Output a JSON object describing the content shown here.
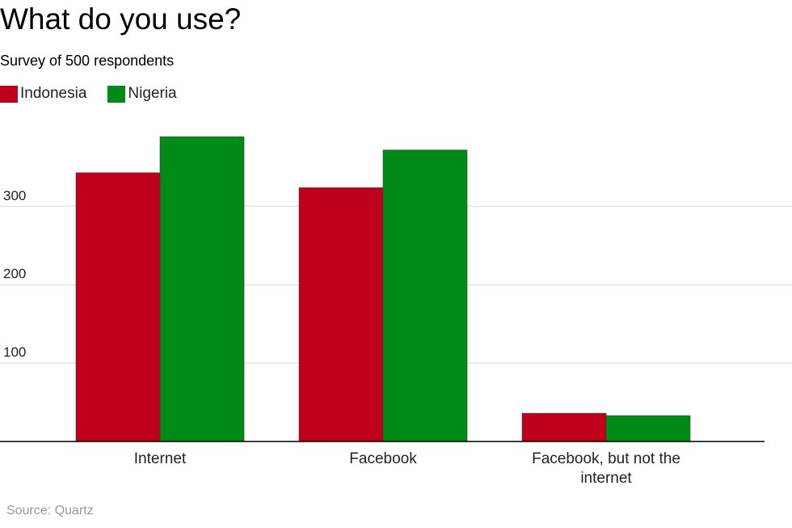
{
  "title": "What do you use?",
  "subtitle": "Survey of 500 respondents",
  "source": "Source: Quartz",
  "colors": {
    "indonesia": "#bf001c",
    "nigeria": "#008a16",
    "grid": "#d9d9d9",
    "axis": "#000000",
    "tick_text": "#222222"
  },
  "chart_data": {
    "type": "bar",
    "title": "What do you use?",
    "subtitle": "Survey of 500 respondents",
    "categories": [
      "Internet",
      "Facebook",
      "Facebook, but not the internet"
    ],
    "series": [
      {
        "name": "Indonesia",
        "values": [
          343,
          324,
          36
        ]
      },
      {
        "name": "Nigeria",
        "values": [
          389,
          372,
          33
        ]
      }
    ],
    "yticks": [
      100,
      200,
      300
    ],
    "ylim": [
      0,
      390
    ],
    "grid": true,
    "legend": "top-left"
  }
}
